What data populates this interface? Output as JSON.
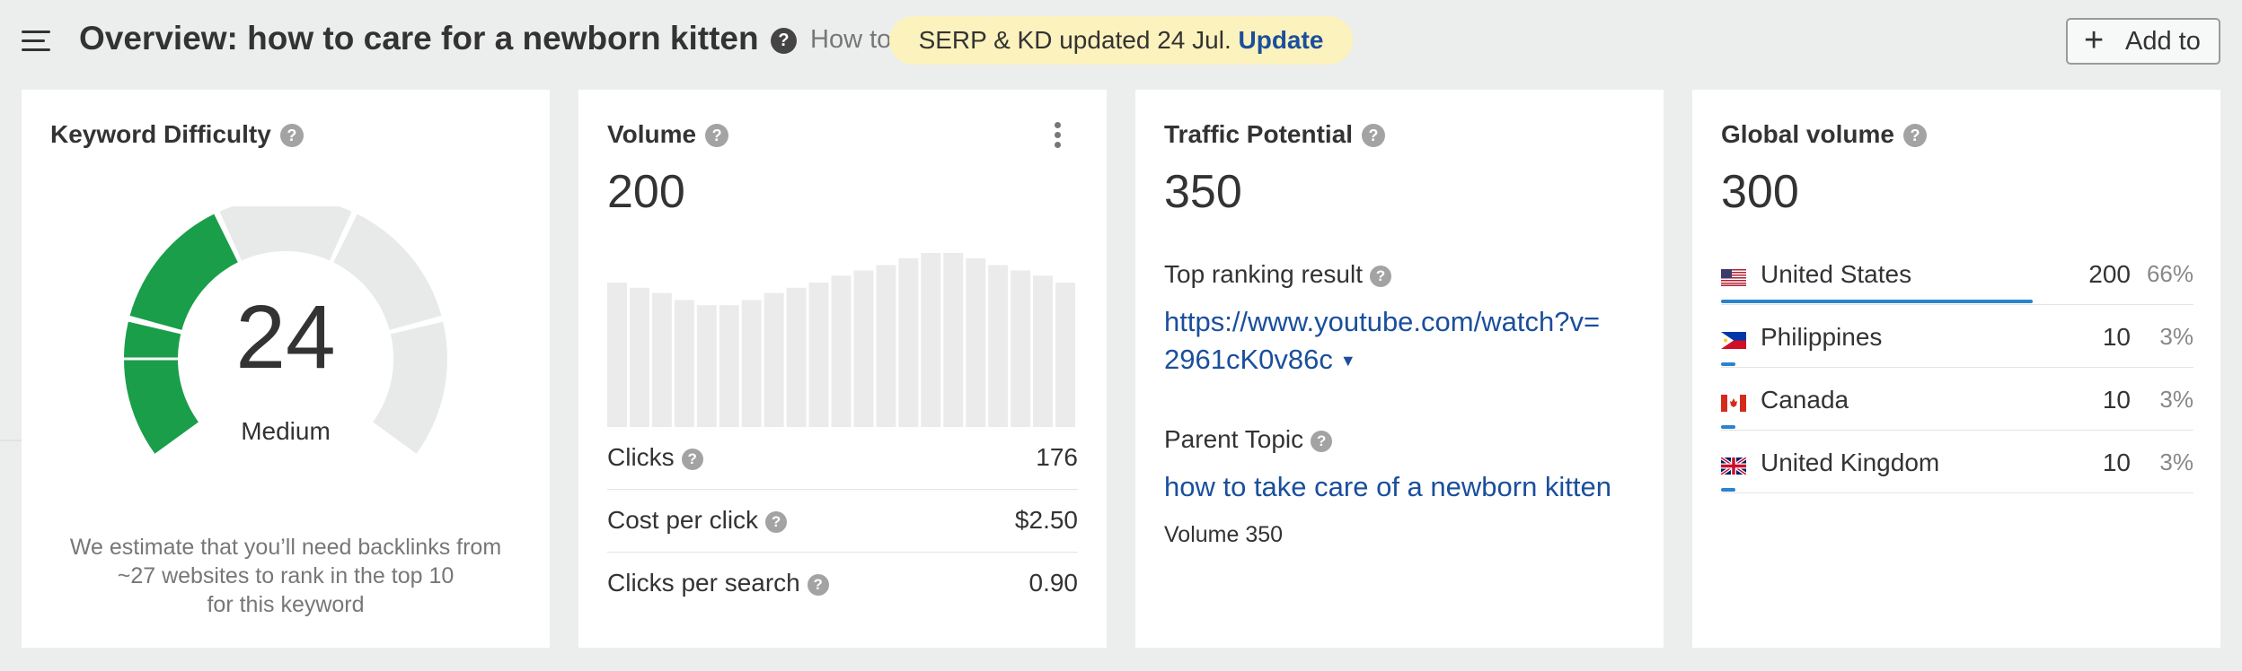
{
  "header": {
    "title": "Overview: how to care for a newborn kitten",
    "howto_text": "How to",
    "badge_text": "SERP & KD updated 24 Jul.",
    "badge_action": "Update",
    "add_button": "Add to"
  },
  "kd": {
    "title": "Keyword Difficulty",
    "value": "24",
    "level": "Medium",
    "description_line1": "We estimate that you’ll need backlinks from",
    "description_line2": "~27 websites to rank in the top 10",
    "description_line3": "for this keyword",
    "gauge_fraction": 0.24,
    "color_active": "#1a9e4a",
    "color_track": "#e8eaea"
  },
  "volume": {
    "title": "Volume",
    "value": "200",
    "trend": [
      0.83,
      0.8,
      0.77,
      0.73,
      0.7,
      0.7,
      0.73,
      0.77,
      0.8,
      0.83,
      0.87,
      0.9,
      0.93,
      0.97,
      1.0,
      1.0,
      0.97,
      0.93,
      0.9,
      0.87,
      0.83
    ],
    "metrics": [
      {
        "label": "Clicks",
        "value": "176"
      },
      {
        "label": "Cost per click",
        "value": "$2.50"
      },
      {
        "label": "Clicks per search",
        "value": "0.90"
      }
    ]
  },
  "traffic": {
    "title": "Traffic Potential",
    "value": "350",
    "top_result_label": "Top ranking result",
    "top_result_url_line1": "https://www.youtube.com/watch?v=",
    "top_result_url_line2": "2961cK0v86c",
    "parent_topic_label": "Parent Topic",
    "parent_topic": "how to take care of a newborn kitten",
    "parent_volume": "Volume 350"
  },
  "global": {
    "title": "Global volume",
    "value": "300",
    "countries": [
      {
        "name": "United States",
        "volume": "200",
        "pct": "66%",
        "share": 0.66,
        "flag": "us-flag"
      },
      {
        "name": "Philippines",
        "volume": "10",
        "pct": "3%",
        "share": 0.03,
        "flag": "ph-flag"
      },
      {
        "name": "Canada",
        "volume": "10",
        "pct": "3%",
        "share": 0.03,
        "flag": "ca-flag"
      },
      {
        "name": "United Kingdom",
        "volume": "10",
        "pct": "3%",
        "share": 0.03,
        "flag": "uk-flag"
      }
    ]
  }
}
